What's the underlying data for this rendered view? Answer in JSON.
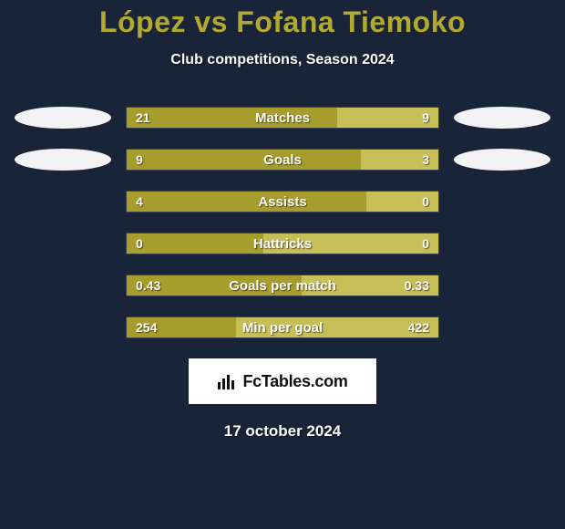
{
  "background_color": "#192439",
  "headline": {
    "text": "López vs Fofana Tiemoko",
    "color": "#b2a930",
    "fontsize": 32,
    "fontweight": 900
  },
  "subtitle": "Club competitions, Season 2024",
  "player_left": {
    "has_photo": true
  },
  "player_right": {
    "has_photo": true
  },
  "bar_colors": {
    "left": "#a79d2c",
    "right": "#c6be57"
  },
  "stats": [
    {
      "label": "Matches",
      "left_value": "21",
      "right_value": "9",
      "left_pct": 67.5,
      "right_pct": 32.5,
      "show_left_photo": true,
      "show_right_photo": true
    },
    {
      "label": "Goals",
      "left_value": "9",
      "right_value": "3",
      "left_pct": 75.0,
      "right_pct": 25.0,
      "show_left_photo": true,
      "show_right_photo": true
    },
    {
      "label": "Assists",
      "left_value": "4",
      "right_value": "0",
      "left_pct": 77.0,
      "right_pct": 23.0,
      "show_left_photo": false,
      "show_right_photo": false
    },
    {
      "label": "Hattricks",
      "left_value": "0",
      "right_value": "0",
      "left_pct": 44.0,
      "right_pct": 56.0,
      "show_left_photo": false,
      "show_right_photo": false
    },
    {
      "label": "Goals per match",
      "left_value": "0.43",
      "right_value": "0.33",
      "left_pct": 56.0,
      "right_pct": 44.0,
      "show_left_photo": false,
      "show_right_photo": false
    },
    {
      "label": "Min per goal",
      "left_value": "254",
      "right_value": "422",
      "left_pct": 35.0,
      "right_pct": 65.0,
      "show_left_photo": false,
      "show_right_photo": false
    }
  ],
  "branding": {
    "text": "FcTables.com",
    "background": "#ffffff",
    "text_color": "#111111"
  },
  "date_text": "17 october 2024"
}
